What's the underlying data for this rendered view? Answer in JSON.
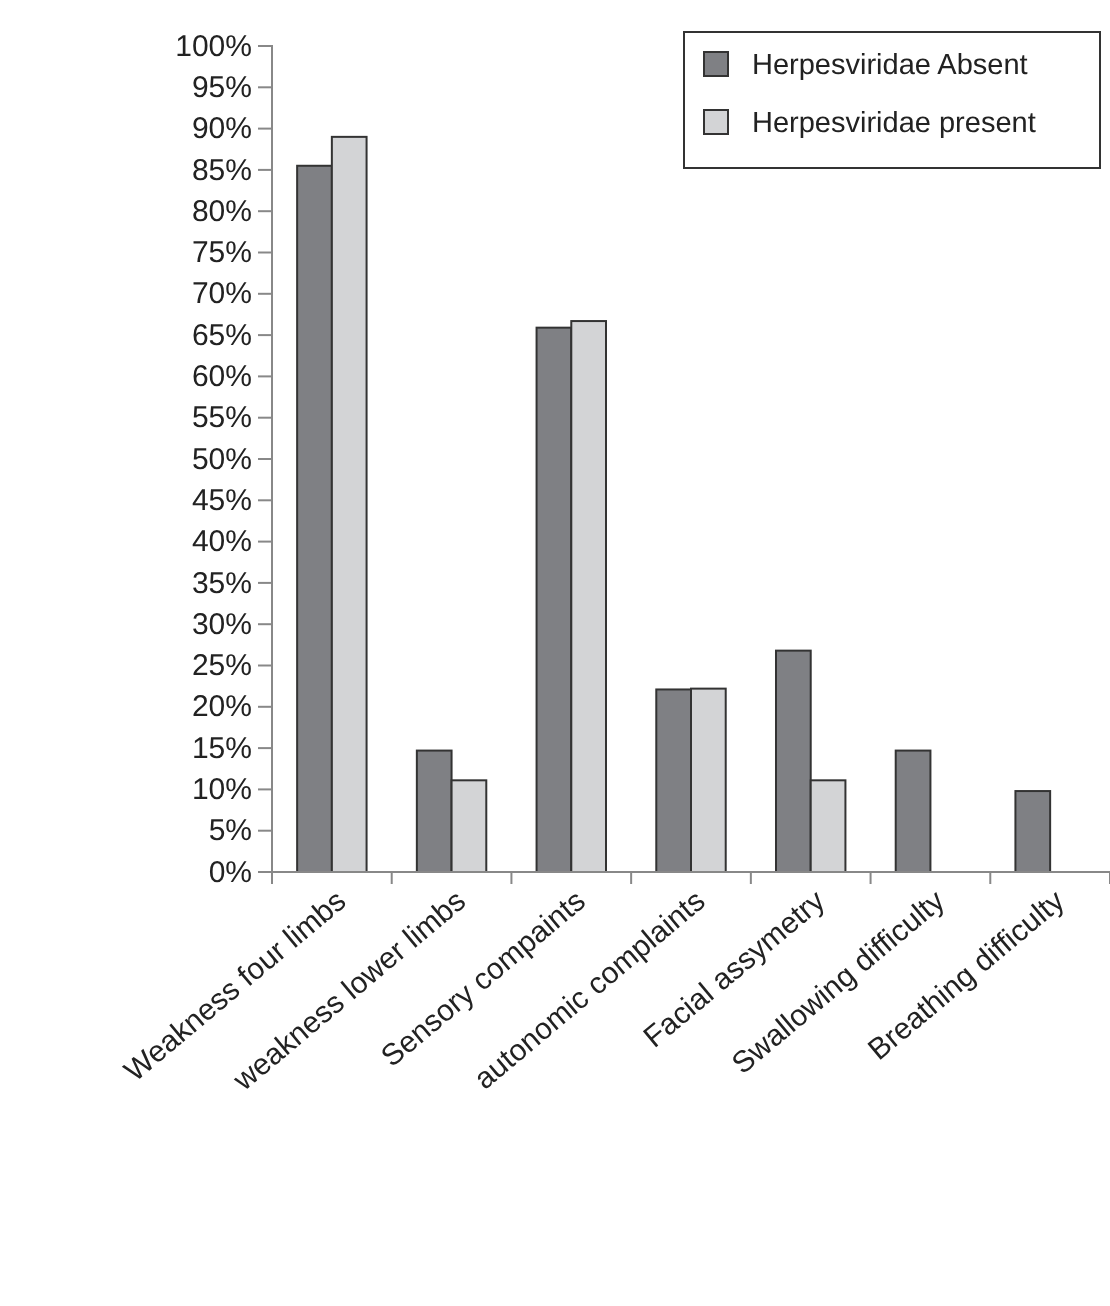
{
  "chart_data": {
    "type": "bar",
    "categories": [
      "Weakness four limbs",
      "weakness lower limbs",
      "Sensory compaints",
      "autonomic complaints",
      "Facial assymetry",
      "Swallowing difficulty",
      "Breathing difficulty"
    ],
    "series": [
      {
        "name": "Herpesviridae Absent",
        "color": "#7f8084",
        "values": [
          85.5,
          14.7,
          65.9,
          22.1,
          26.8,
          14.7,
          9.8
        ]
      },
      {
        "name": "Herpesviridae present",
        "color": "#d3d4d6",
        "values": [
          89.0,
          11.1,
          66.7,
          22.2,
          11.1,
          0,
          0
        ]
      }
    ],
    "ylim": [
      0,
      100
    ],
    "yticks": [
      {
        "value": 0,
        "label": "0%"
      },
      {
        "value": 5,
        "label": "5%"
      },
      {
        "value": 10,
        "label": "10%"
      },
      {
        "value": 15,
        "label": "15%"
      },
      {
        "value": 20,
        "label": "20%"
      },
      {
        "value": 25,
        "label": "25%"
      },
      {
        "value": 30,
        "label": "30%"
      },
      {
        "value": 35,
        "label": "35%"
      },
      {
        "value": 40,
        "label": "40%"
      },
      {
        "value": 45,
        "label": "45%"
      },
      {
        "value": 50,
        "label": "50%"
      },
      {
        "value": 55,
        "label": "55%"
      },
      {
        "value": 60,
        "label": "60%"
      },
      {
        "value": 65,
        "label": "65%"
      },
      {
        "value": 70,
        "label": "70%"
      },
      {
        "value": 75,
        "label": "75%"
      },
      {
        "value": 80,
        "label": "80%"
      },
      {
        "value": 85,
        "label": "85%"
      },
      {
        "value": 90,
        "label": "90%"
      },
      {
        "value": 95,
        "label": "95%"
      },
      {
        "value": 100,
        "label": "100%"
      }
    ],
    "legend": "top right"
  }
}
